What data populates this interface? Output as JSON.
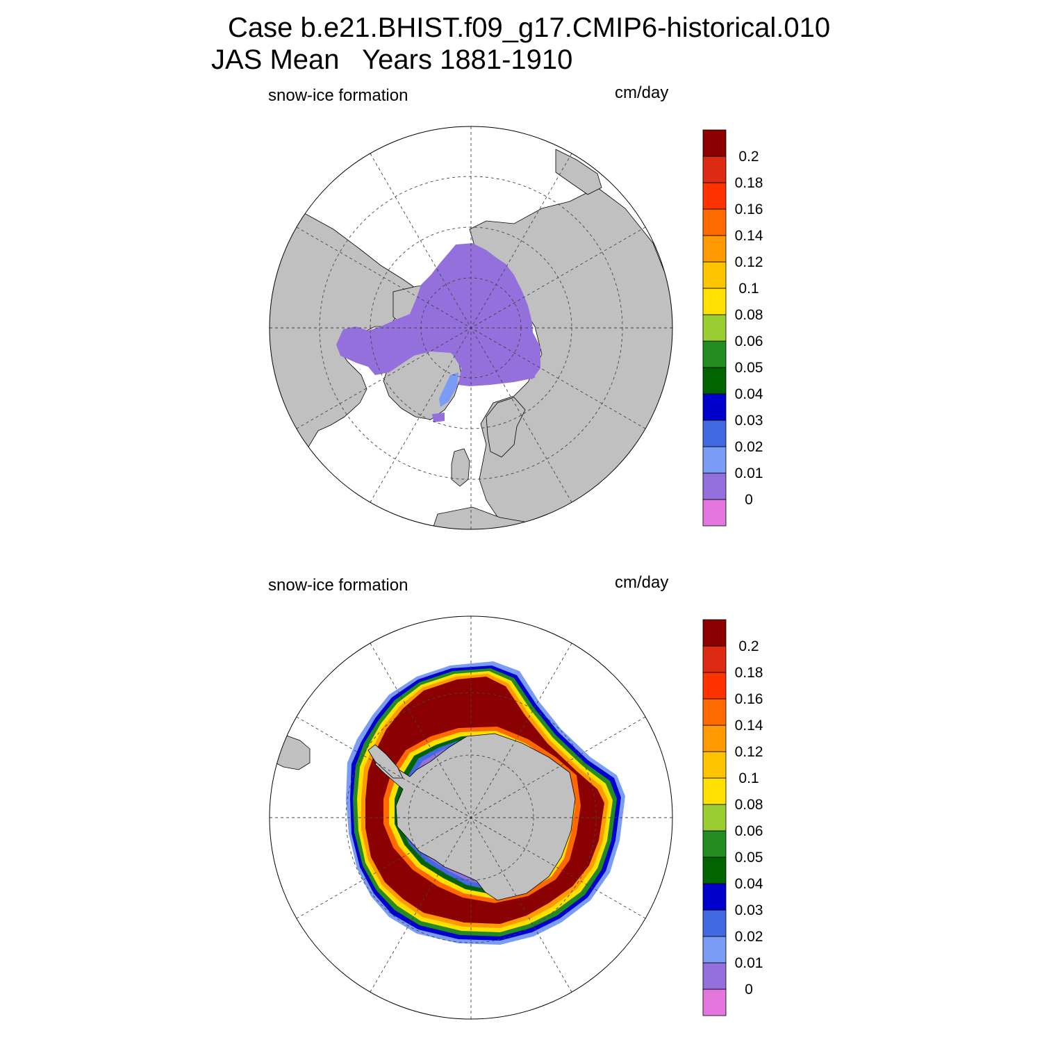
{
  "header": {
    "title": "Case b.e21.BHIST.f09_g17.CMIP6-historical.010",
    "subtitle": "JAS Mean   Years 1881-1910"
  },
  "panels": [
    {
      "hemisphere": "north",
      "field_label": "snow-ice formation",
      "units": "cm/day"
    },
    {
      "hemisphere": "south",
      "field_label": "snow-ice formation",
      "units": "cm/day"
    }
  ],
  "colorbar": {
    "levels": [
      "0",
      "0.01",
      "0.02",
      "0.03",
      "0.04",
      "0.05",
      "0.06",
      "0.08",
      "0.1",
      "0.12",
      "0.14",
      "0.16",
      "0.18",
      "0.2"
    ],
    "colors": [
      "#e377de",
      "#9370db",
      "#7b9cf5",
      "#4169e1",
      "#0000cd",
      "#006400",
      "#228b22",
      "#9acd32",
      "#ffe000",
      "#ffc400",
      "#ff9a00",
      "#ff6a00",
      "#ff3300",
      "#dd2a12",
      "#8b0000"
    ]
  },
  "map_colors": {
    "land": "#c0c0c0",
    "ocean": "#ffffff",
    "sea_ice": "#9370db",
    "core": "#8b0000"
  }
}
